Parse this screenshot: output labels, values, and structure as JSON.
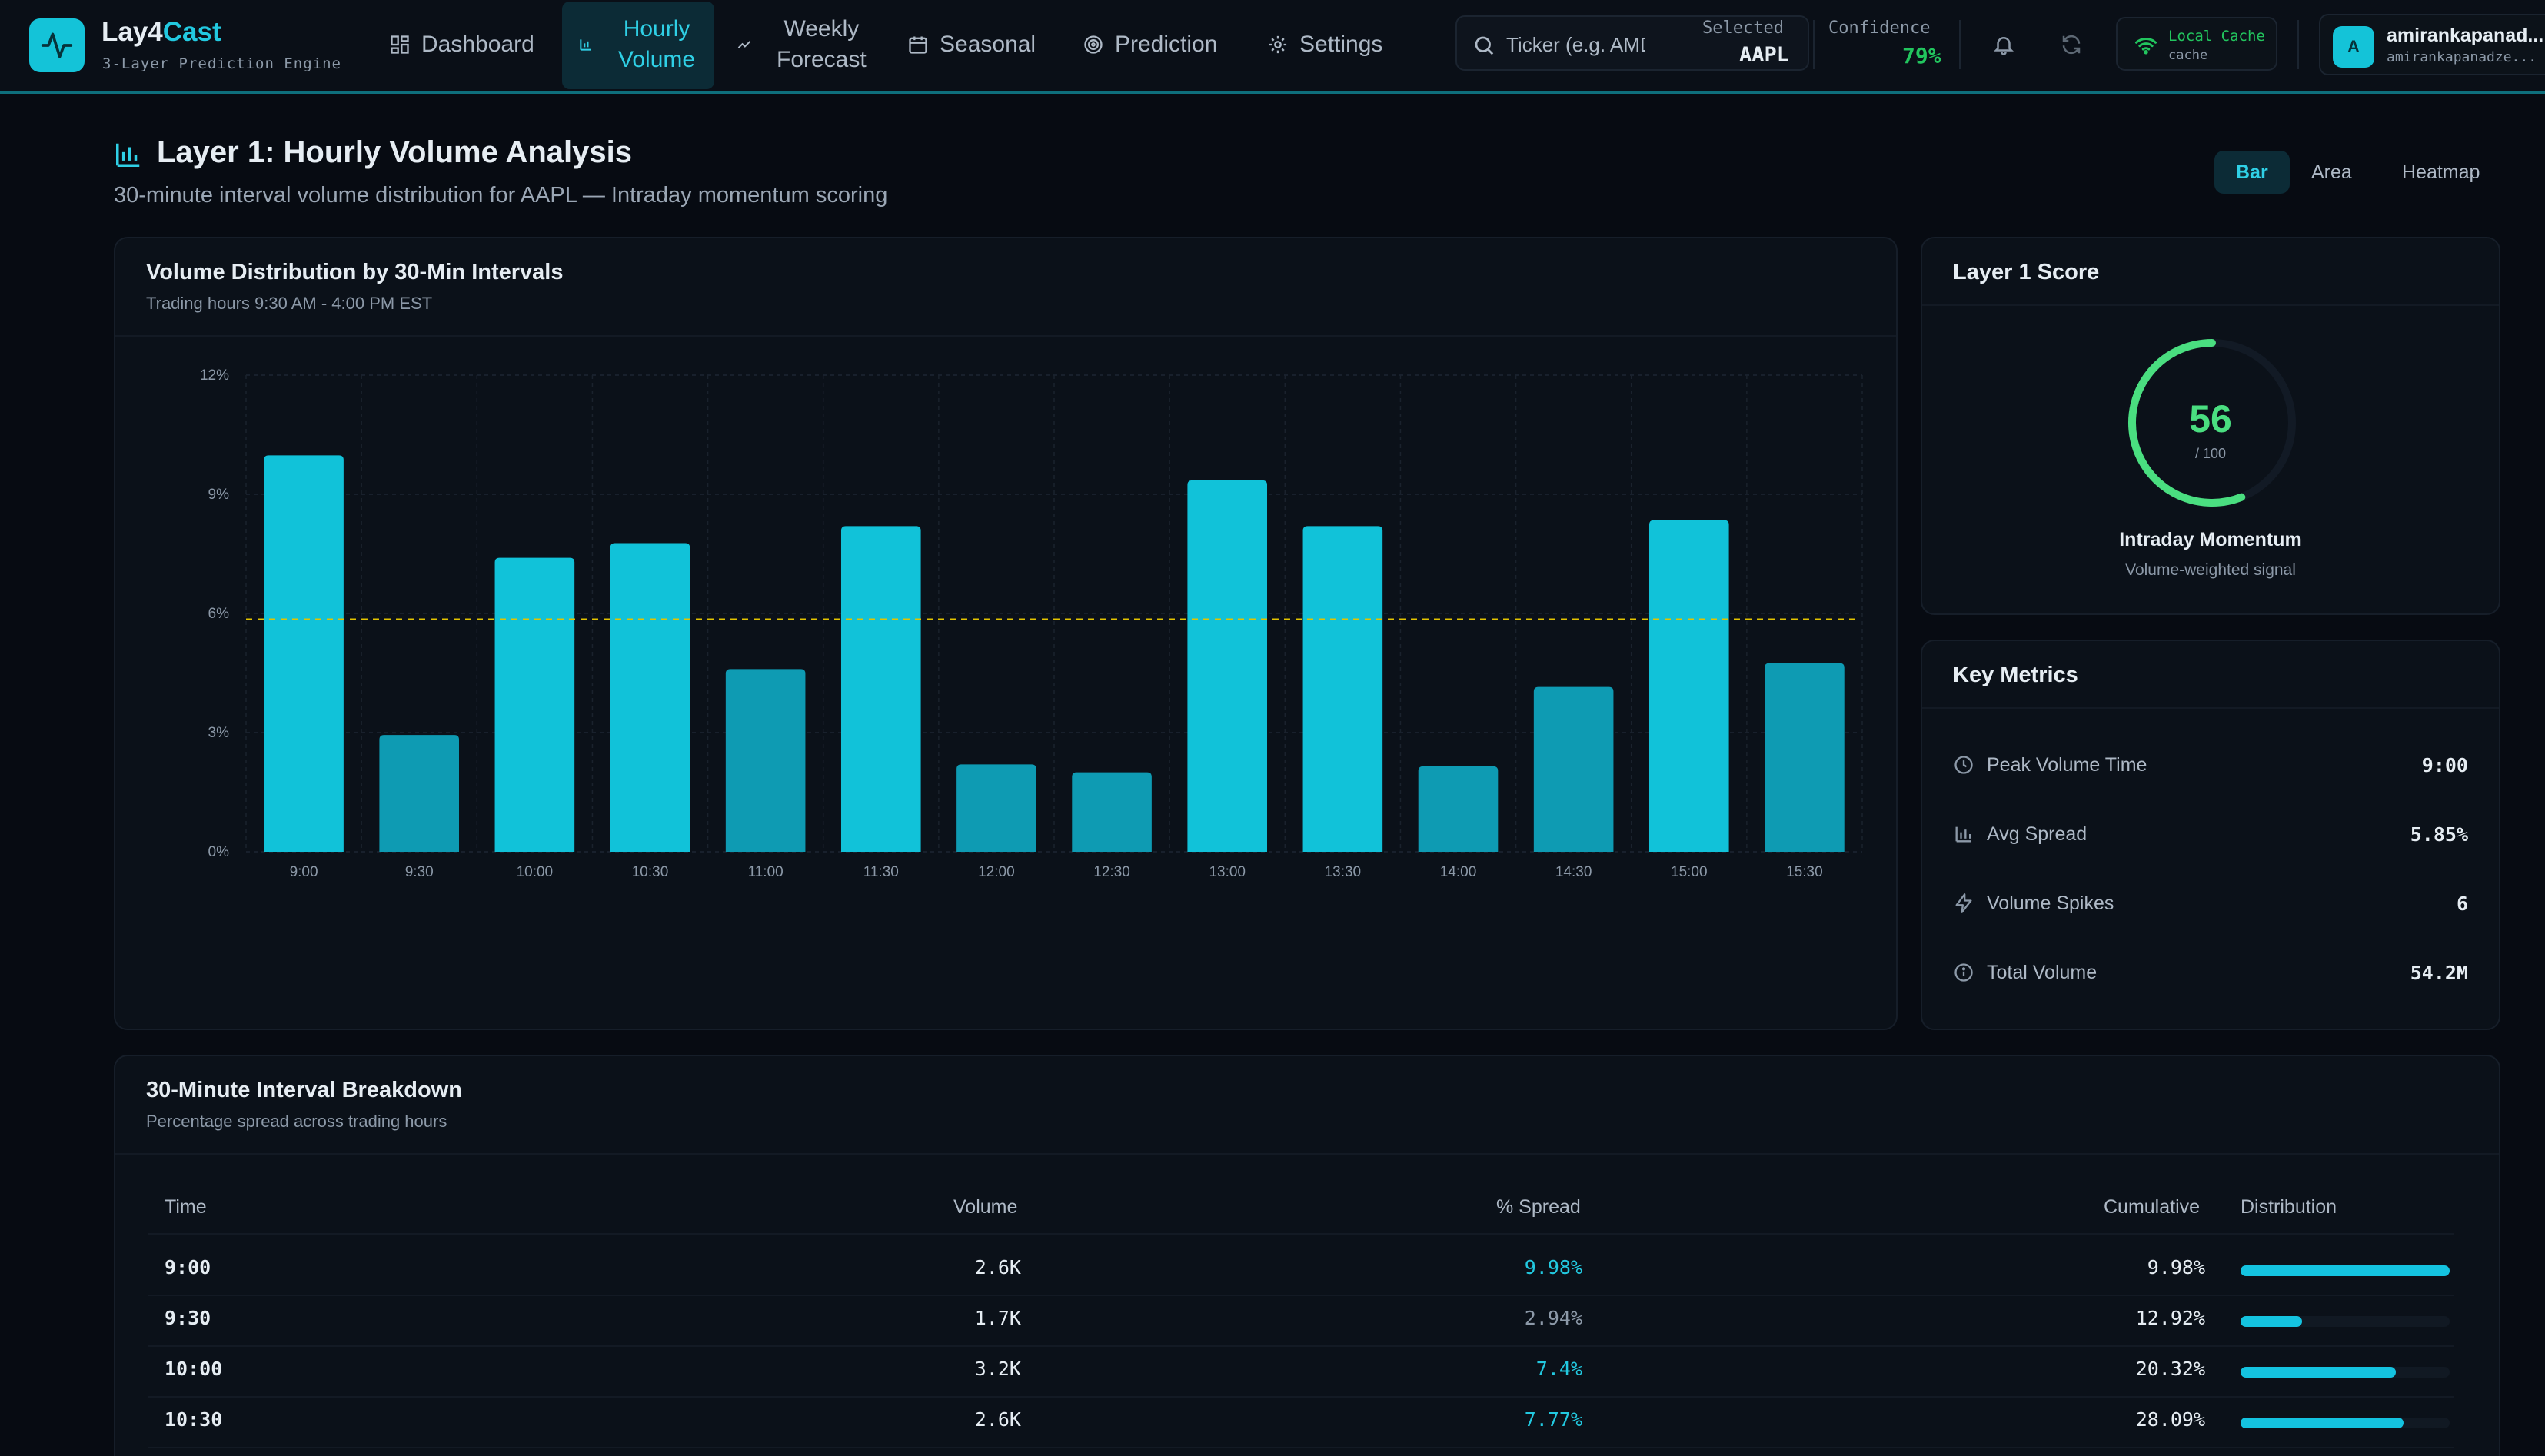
{
  "brand": {
    "name_main": "Lay4",
    "name_accent": "Cast",
    "subtitle": "3-Layer Prediction Engine"
  },
  "nav": {
    "dashboard": "Dashboard",
    "hourly_line1": "Hourly",
    "hourly_line2": "Volume",
    "weekly_line1": "Weekly",
    "weekly_line2": "Forecast",
    "seasonal": "Seasonal",
    "prediction": "Prediction",
    "settings": "Settings"
  },
  "search": {
    "placeholder": "Ticker (e.g. AMD)"
  },
  "selected": {
    "label": "Selected",
    "value": "AAPL"
  },
  "confidence": {
    "label": "Confidence",
    "value": "79%"
  },
  "cache": {
    "title": "Local Cache",
    "subtitle": "cache"
  },
  "user": {
    "initial": "A",
    "name": "amirankapanad...",
    "sub": "amirankapanadze..."
  },
  "page": {
    "title": "Layer 1: Hourly Volume Analysis",
    "subtitle": "30-minute interval volume distribution for AAPL — Intraday momentum scoring"
  },
  "view_tabs": {
    "bar": "Bar",
    "area": "Area",
    "heatmap": "Heatmap"
  },
  "chart_panel": {
    "title": "Volume Distribution by 30-Min Intervals",
    "subtitle": "Trading hours 9:30 AM - 4:00 PM EST"
  },
  "chart_data": {
    "type": "bar",
    "title": "Volume Distribution by 30-Min Intervals",
    "subtitle": "Trading hours 9:30 AM - 4:00 PM EST",
    "categories": [
      "9:00",
      "9:30",
      "10:00",
      "10:30",
      "11:00",
      "11:30",
      "12:00",
      "12:30",
      "13:00",
      "13:30",
      "14:00",
      "14:30",
      "15:00",
      "15:30"
    ],
    "values": [
      9.98,
      2.94,
      7.4,
      7.77,
      4.6,
      8.2,
      2.2,
      2.0,
      9.35,
      8.2,
      2.15,
      4.15,
      8.35,
      4.75
    ],
    "highlight": [
      true,
      false,
      true,
      true,
      false,
      true,
      false,
      false,
      true,
      true,
      false,
      false,
      true,
      false
    ],
    "y_ticks": [
      "0%",
      "3%",
      "6%",
      "9%",
      "12%"
    ],
    "ylim": [
      0,
      12
    ],
    "reference_line": 5.85,
    "grid": true,
    "colors": {
      "bar": "#11c2d9",
      "bar_muted": "#0e9bb3",
      "reference": "#e3c400"
    }
  },
  "score_panel": {
    "title": "Layer 1 Score",
    "score": "56",
    "max": "/ 100",
    "score_value": 56,
    "label": "Intraday Momentum",
    "sublabel": "Volume-weighted signal",
    "color": "#4ade80"
  },
  "metrics_panel": {
    "title": "Key Metrics",
    "items": [
      {
        "label": "Peak Volume Time",
        "value": "9:00",
        "icon": "clock-icon"
      },
      {
        "label": "Avg Spread",
        "value": "5.85%",
        "icon": "bar-chart-icon"
      },
      {
        "label": "Volume Spikes",
        "value": "6",
        "icon": "lightning-icon"
      },
      {
        "label": "Total Volume",
        "value": "54.2M",
        "icon": "info-icon"
      }
    ]
  },
  "table_panel": {
    "title": "30-Minute Interval Breakdown",
    "subtitle": "Percentage spread across trading hours",
    "columns": {
      "time": "Time",
      "volume": "Volume",
      "spread": "% Spread",
      "cumulative": "Cumulative",
      "distribution": "Distribution"
    },
    "rows": [
      {
        "time": "9:00",
        "volume": "2.6K",
        "spread": "9.98%",
        "cumulative": "9.98%",
        "dist": 1.0,
        "spread_highlight": true
      },
      {
        "time": "9:30",
        "volume": "1.7K",
        "spread": "2.94%",
        "cumulative": "12.92%",
        "dist": 0.295,
        "spread_highlight": false
      },
      {
        "time": "10:00",
        "volume": "3.2K",
        "spread": "7.4%",
        "cumulative": "20.32%",
        "dist": 0.741,
        "spread_highlight": true
      },
      {
        "time": "10:30",
        "volume": "2.6K",
        "spread": "7.77%",
        "cumulative": "28.09%",
        "dist": 0.779,
        "spread_highlight": true
      }
    ]
  }
}
